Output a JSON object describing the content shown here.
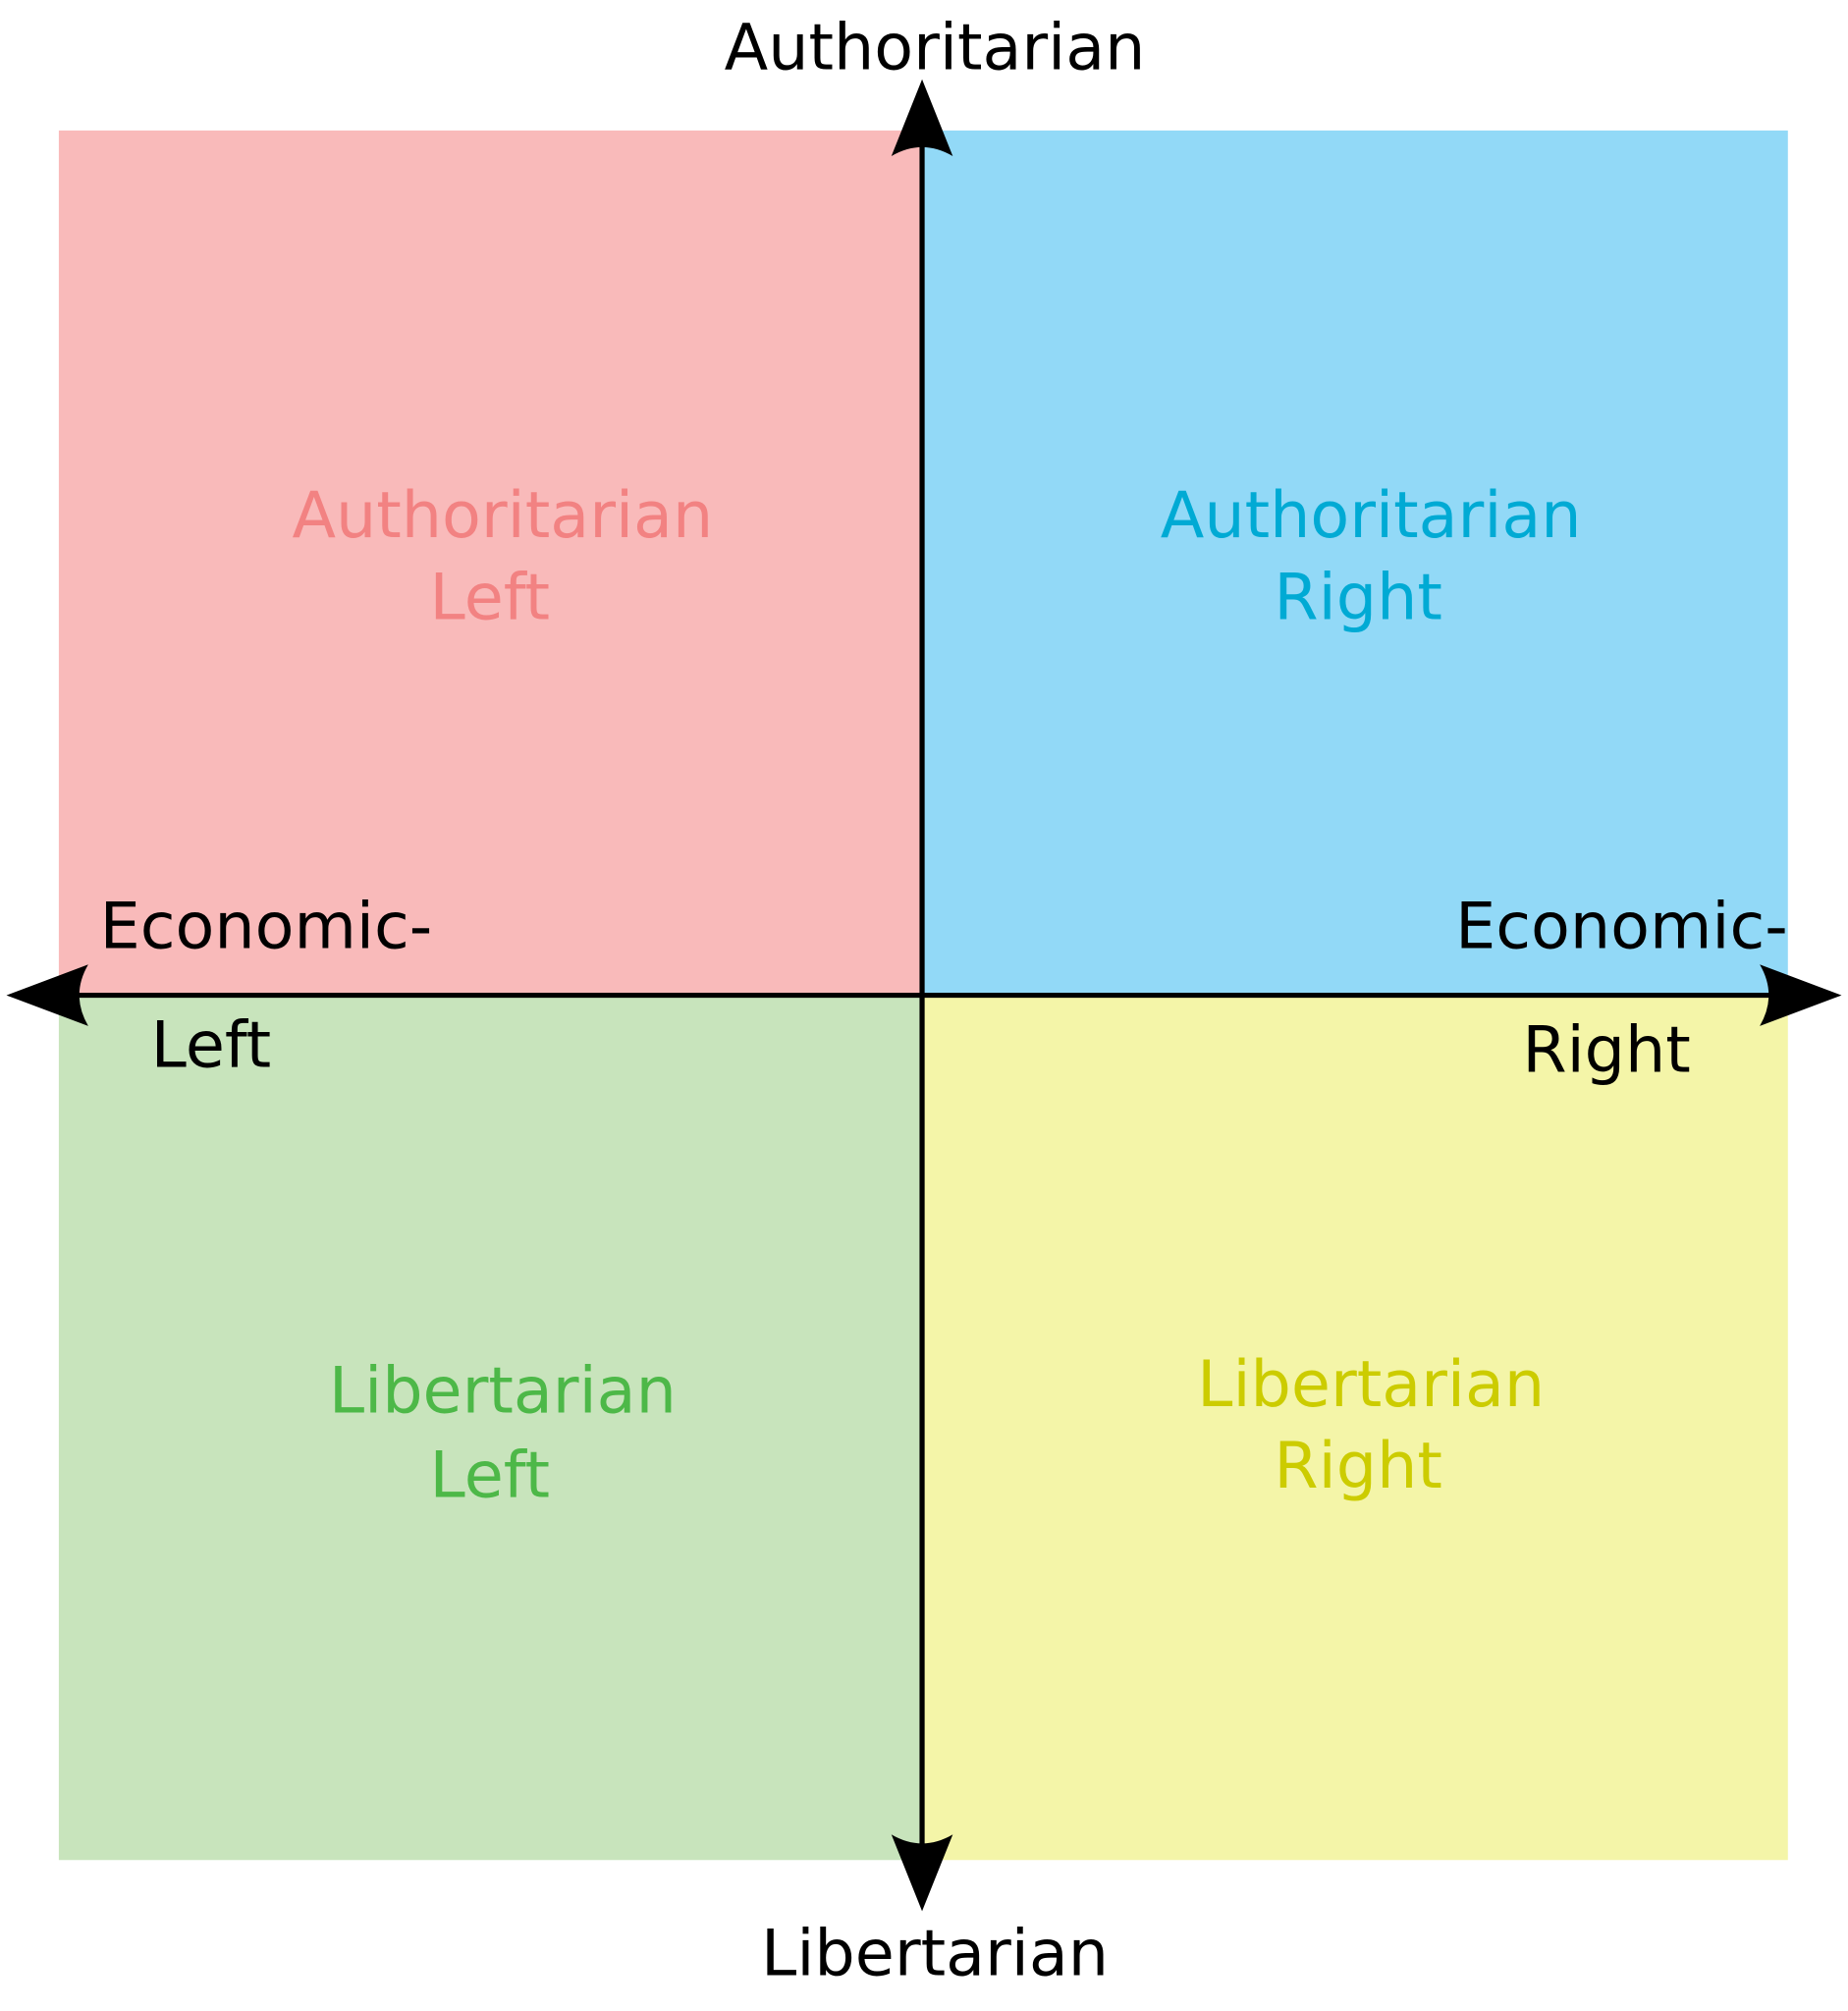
{
  "axes": {
    "top": "Authoritarian",
    "bottom": "Libertarian",
    "left_line1": "Economic-",
    "left_line2": "Left",
    "right_line1": "Economic-",
    "right_line2": "Right"
  },
  "quadrants": {
    "auth_left": {
      "line1": "Authoritarian",
      "line2": "Left",
      "fill": "#f9baba",
      "text_color": "#f28282"
    },
    "auth_right": {
      "line1": "Authoritarian",
      "line2": "Right",
      "fill": "#92d9f7",
      "text_color": "#00aad4"
    },
    "lib_left": {
      "line1": "Libertarian",
      "line2": "Left",
      "fill": "#c8e4bc",
      "text_color": "#4db848"
    },
    "lib_right": {
      "line1": "Libertarian",
      "line2": "Right",
      "fill": "#f4f5a8",
      "text_color": "#cccc00"
    }
  },
  "axis_color": "#000000"
}
